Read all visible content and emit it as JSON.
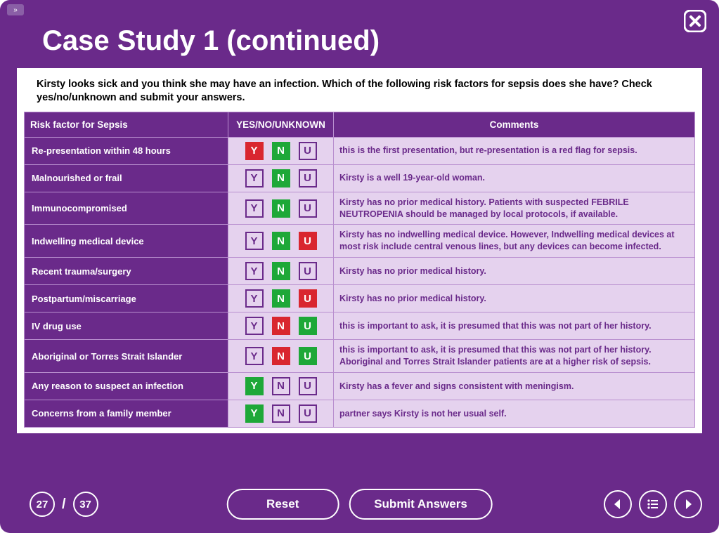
{
  "colors": {
    "primary": "#6a2a8a",
    "light_row": "#e5d2ee",
    "green": "#1ea838",
    "red": "#d9262f",
    "white": "#ffffff"
  },
  "header": {
    "title": "Case Study 1 (continued)"
  },
  "question": "Kirsty looks sick and you think she may have an infection. Which of the following risk factors for sepsis does she have? Check yes/no/unknown and submit your answers.",
  "table": {
    "columns": [
      "Risk factor for Sepsis",
      "YES/NO/UNKNOWN",
      "Comments"
    ],
    "col_widths": [
      "290px",
      "150px",
      "auto"
    ],
    "button_labels": {
      "yes": "Y",
      "no": "N",
      "unknown": "U"
    },
    "rows": [
      {
        "risk": "Re-presentation within 48 hours",
        "answers": {
          "Y": "red",
          "N": "green",
          "U": "plain"
        },
        "comment": "this is the first presentation, but re-presentation is a red flag for sepsis."
      },
      {
        "risk": "Malnourished or frail",
        "answers": {
          "Y": "plain",
          "N": "green",
          "U": "plain"
        },
        "comment": "Kirsty is a well 19-year-old woman."
      },
      {
        "risk": "Immunocompromised",
        "answers": {
          "Y": "plain",
          "N": "green",
          "U": "plain"
        },
        "comment": "Kirsty has no prior medical history.  Patients with suspected FEBRILE NEUTROPENIA should be managed by local protocols, if available."
      },
      {
        "risk": "Indwelling medical device",
        "answers": {
          "Y": "plain",
          "N": "green",
          "U": "red"
        },
        "comment": "Kirsty has no indwelling medical device. However, Indwelling medical devices at most risk include central venous lines, but any devices can become infected."
      },
      {
        "risk": "Recent trauma/surgery",
        "answers": {
          "Y": "plain",
          "N": "green",
          "U": "plain"
        },
        "comment": "Kirsty has no prior medical history."
      },
      {
        "risk": "Postpartum/miscarriage",
        "answers": {
          "Y": "plain",
          "N": "green",
          "U": "red"
        },
        "comment": "Kirsty has no prior medical history."
      },
      {
        "risk": "IV drug use",
        "answers": {
          "Y": "plain",
          "N": "red",
          "U": "green"
        },
        "comment": "this is important to ask, it is presumed that this was not part of her history."
      },
      {
        "risk": "Aboriginal or Torres Strait Islander",
        "answers": {
          "Y": "plain",
          "N": "red",
          "U": "green"
        },
        "comment": "this is important to ask, it is presumed that this was not part of her history. Aboriginal and Torres Strait Islander patients are at a higher risk of sepsis."
      },
      {
        "risk": "Any reason to suspect an infection",
        "answers": {
          "Y": "green",
          "N": "plain",
          "U": "plain"
        },
        "comment": "Kirsty has a fever and signs consistent with meningism."
      },
      {
        "risk": "Concerns from a family member",
        "answers": {
          "Y": "green",
          "N": "plain",
          "U": "plain"
        },
        "comment": "partner says Kirsty is not her usual self."
      }
    ]
  },
  "footer": {
    "current_page": "27",
    "total_pages": "37",
    "reset_label": "Reset",
    "submit_label": "Submit Answers"
  }
}
